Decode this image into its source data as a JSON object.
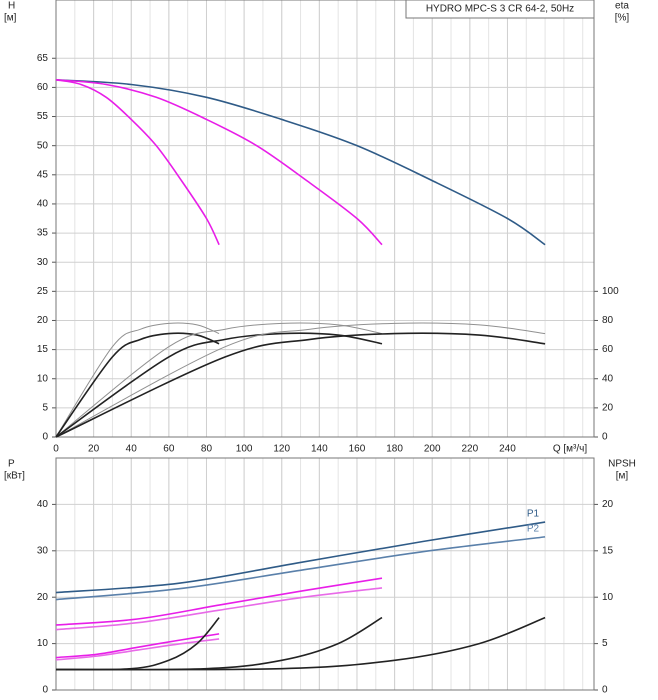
{
  "chart_data": [
    {
      "type": "line",
      "title": "HYDRO MPC-S 3 CR 64-2, 50Hz",
      "ylabel": [
        "H",
        "[м]"
      ],
      "y2label": [
        "eta",
        "[%]"
      ],
      "xlabel": "Q [м³/ч]",
      "xlim": [
        0,
        286
      ],
      "xticks": [
        0,
        20,
        40,
        60,
        80,
        100,
        120,
        140,
        160,
        180,
        200,
        220,
        240
      ],
      "ylim": [
        0,
        75
      ],
      "yticks": [
        0,
        5,
        10,
        15,
        20,
        25,
        30,
        35,
        40,
        45,
        50,
        55,
        60,
        65
      ],
      "y2lim": [
        0,
        300
      ],
      "y2ticks": [
        0,
        20,
        40,
        60,
        80,
        100
      ],
      "grid": true,
      "series": [
        {
          "color": "#2f5b87",
          "x": [
            0,
            40,
            80,
            120,
            160,
            200,
            240,
            260
          ],
          "values": [
            61.3,
            60.5,
            58.3,
            54.5,
            50,
            44,
            37.5,
            33
          ]
        },
        {
          "color": "#e81ee8",
          "x": [
            0,
            26.7,
            53.3,
            80,
            106.7,
            133.3,
            160,
            173.3
          ],
          "values": [
            61.3,
            60.5,
            58.3,
            54.5,
            50,
            44,
            37.5,
            33
          ]
        },
        {
          "color": "#e81ee8",
          "x": [
            0,
            13.3,
            26.7,
            40,
            53.3,
            66.7,
            80,
            86.7
          ],
          "values": [
            61.3,
            60.5,
            58.3,
            54.5,
            50,
            44,
            37.5,
            33
          ]
        },
        {
          "color": "#909090",
          "axis": "y2",
          "x": [
            0,
            30,
            45,
            60,
            75,
            86.7
          ],
          "values": [
            0,
            62,
            74,
            78,
            77,
            71
          ]
        },
        {
          "color": "#222222",
          "axis": "y2",
          "x": [
            0,
            30,
            45,
            60,
            75,
            86.7
          ],
          "values": [
            0,
            55,
            67,
            71,
            70,
            64
          ]
        },
        {
          "color": "#909090",
          "axis": "y2",
          "x": [
            0,
            60,
            90,
            120,
            150,
            173.3
          ],
          "values": [
            0,
            62,
            74,
            78,
            77,
            71
          ]
        },
        {
          "color": "#222222",
          "axis": "y2",
          "x": [
            0,
            60,
            90,
            120,
            150,
            173.3
          ],
          "values": [
            0,
            55,
            67,
            71,
            70,
            64
          ]
        },
        {
          "color": "#909090",
          "axis": "y2",
          "x": [
            0,
            90,
            135,
            180,
            225,
            260
          ],
          "values": [
            0,
            62,
            74,
            78,
            77,
            71
          ]
        },
        {
          "color": "#222222",
          "axis": "y2",
          "x": [
            0,
            90,
            135,
            180,
            225,
            260
          ],
          "values": [
            0,
            55,
            67,
            71,
            70,
            64
          ]
        }
      ]
    },
    {
      "type": "line",
      "ylabel": [
        "P",
        "[кВт]"
      ],
      "y2label": [
        "NPSH",
        "[м]"
      ],
      "xlim": [
        0,
        286
      ],
      "ylim": [
        0,
        50
      ],
      "yticks": [
        0,
        10,
        20,
        30,
        40
      ],
      "y2lim": [
        0,
        25
      ],
      "y2ticks": [
        0,
        5,
        10,
        15,
        20
      ],
      "grid": true,
      "series": [
        {
          "color": "#2f5b87",
          "label": "P1",
          "x": [
            0,
            65,
            130,
            195,
            260
          ],
          "values": [
            21,
            23,
            27.5,
            32,
            36.2
          ]
        },
        {
          "color": "#5a80aa",
          "label": "P2",
          "x": [
            0,
            65,
            130,
            195,
            260
          ],
          "values": [
            19.5,
            21.8,
            25.8,
            29.8,
            33
          ]
        },
        {
          "color": "#e81ee8",
          "x": [
            0,
            43.3,
            86.7,
            130,
            173.3
          ],
          "values": [
            14,
            15.3,
            18.3,
            21.3,
            24.1
          ]
        },
        {
          "color": "#e86ae8",
          "x": [
            0,
            43.3,
            86.7,
            130,
            173.3
          ],
          "values": [
            13,
            14.5,
            17.2,
            19.9,
            22
          ]
        },
        {
          "color": "#e81ee8",
          "x": [
            0,
            21.7,
            43.3,
            65,
            86.7
          ],
          "values": [
            7,
            7.7,
            9.2,
            10.7,
            12.1
          ]
        },
        {
          "color": "#e86ae8",
          "x": [
            0,
            21.7,
            43.3,
            65,
            86.7
          ],
          "values": [
            6.5,
            7.3,
            8.6,
            9.9,
            11
          ]
        },
        {
          "color": "#222222",
          "axis": "y2",
          "x": [
            0,
            40,
            60,
            75,
            86.7
          ],
          "values": [
            2.2,
            2.3,
            3.2,
            5,
            7.8
          ]
        },
        {
          "color": "#222222",
          "axis": "y2",
          "x": [
            0,
            80,
            120,
            150,
            173.3
          ],
          "values": [
            2.2,
            2.3,
            3.2,
            5,
            7.8
          ]
        },
        {
          "color": "#222222",
          "axis": "y2",
          "x": [
            0,
            120,
            180,
            225,
            260
          ],
          "values": [
            2.2,
            2.3,
            3.2,
            5,
            7.8
          ]
        }
      ]
    }
  ]
}
